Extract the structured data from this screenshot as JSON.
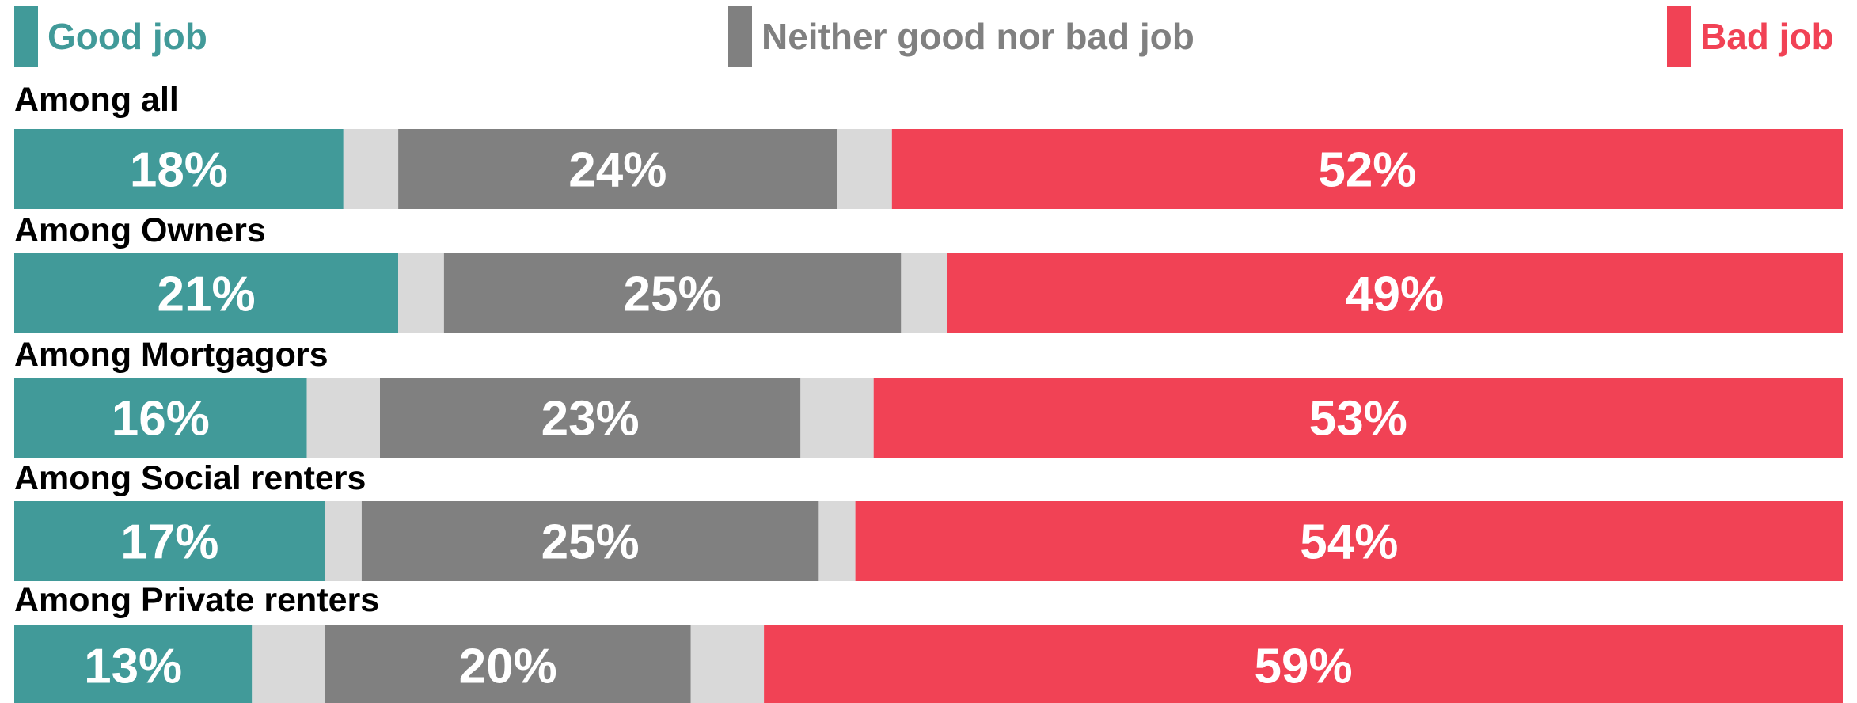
{
  "chart_data": {
    "type": "bar",
    "orientation": "horizontal",
    "stacked": true,
    "grid": false,
    "legend_position": "top",
    "xlim": [
      0,
      100
    ],
    "categories": [
      "Among all",
      "Among Owners",
      "Among Mortgagors",
      "Among Social renters",
      "Among Private renters"
    ],
    "series": [
      {
        "name": "Good job",
        "color": "#419a99",
        "values": [
          18,
          21,
          16,
          17,
          13
        ],
        "labels": [
          "18%",
          "21%",
          "16%",
          "17%",
          "13%"
        ]
      },
      {
        "name": "",
        "color": "#d9d9d9",
        "values": [
          3,
          2.5,
          4,
          2,
          4
        ],
        "labels": [
          "",
          "",
          "",
          "",
          ""
        ]
      },
      {
        "name": "Neither good nor bad job",
        "color": "#808080",
        "values": [
          24,
          25,
          23,
          25,
          20
        ],
        "labels": [
          "24%",
          "25%",
          "23%",
          "25%",
          "20%"
        ]
      },
      {
        "name": "",
        "color": "#d9d9d9",
        "values": [
          3,
          2.5,
          4,
          2,
          4
        ],
        "labels": [
          "",
          "",
          "",
          "",
          ""
        ]
      },
      {
        "name": "Bad job",
        "color": "#f14255",
        "values": [
          52,
          49,
          53,
          54,
          59
        ],
        "labels": [
          "52%",
          "49%",
          "53%",
          "54%",
          "59%"
        ]
      }
    ]
  }
}
